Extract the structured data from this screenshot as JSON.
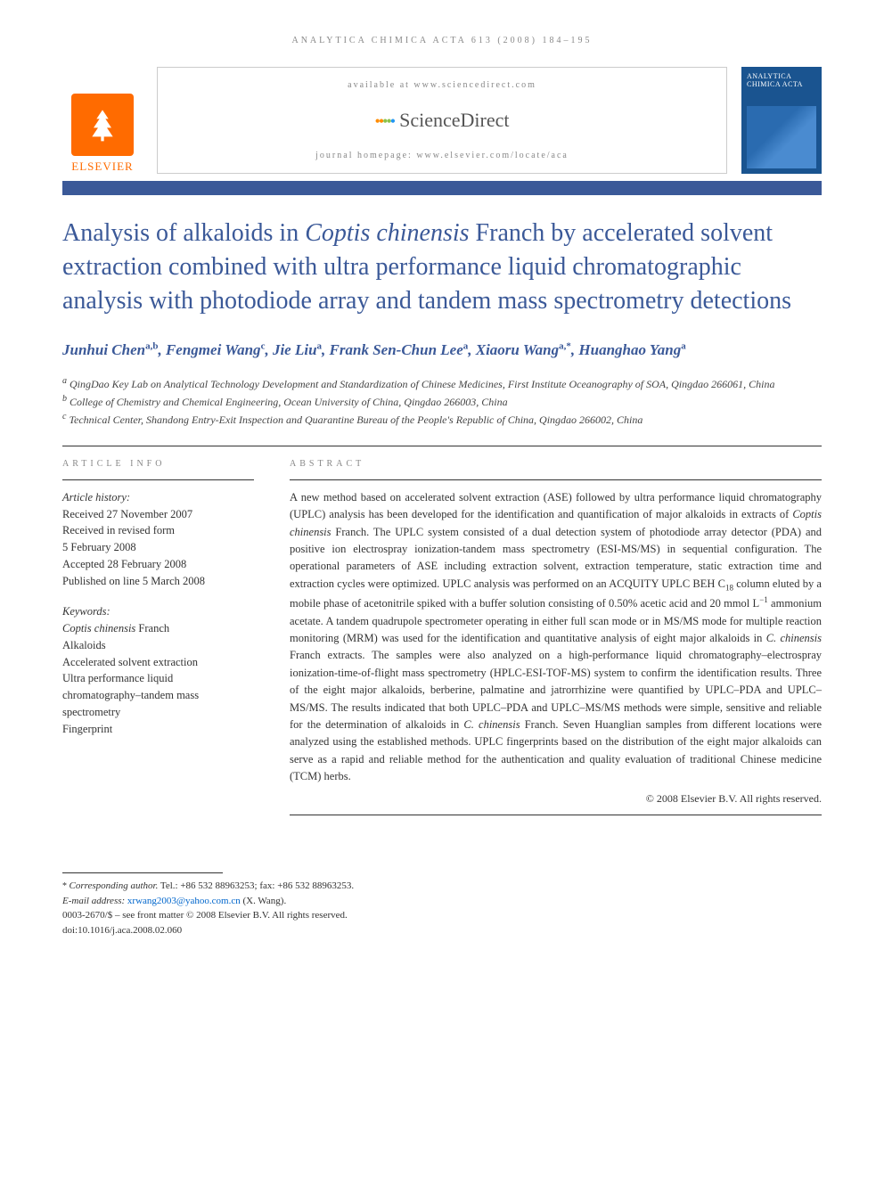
{
  "running_head": "ANALYTICA CHIMICA ACTA 613 (2008) 184–195",
  "header": {
    "publisher_name": "ELSEVIER",
    "publisher_tree_alt": "tree",
    "available_line": "available at www.sciencedirect.com",
    "sd_brand": "ScienceDirect",
    "homepage_line": "journal homepage: www.elsevier.com/locate/aca",
    "journal_cover_title": "ANALYTICA CHIMICA ACTA"
  },
  "title_parts": {
    "pre": "Analysis of alkaloids in ",
    "em": "Coptis chinensis",
    "post": " Franch by accelerated solvent extraction combined with ultra performance liquid chromatographic analysis with photodiode array and tandem mass spectrometry detections"
  },
  "authors_html": "Junhui Chen<sup>a,b</sup>, Fengmei Wang<sup>c</sup>, Jie Liu<sup>a</sup>, Frank Sen-Chun Lee<sup>a</sup>, Xiaoru Wang<sup>a,*</sup>, Huanghao Yang<sup>a</sup>",
  "affiliations": [
    {
      "sup": "a",
      "text": " QingDao Key Lab on Analytical Technology Development and Standardization of Chinese Medicines, First Institute Oceanography of SOA, Qingdao 266061, China"
    },
    {
      "sup": "b",
      "text": " College of Chemistry and Chemical Engineering, Ocean University of China, Qingdao 266003, China"
    },
    {
      "sup": "c",
      "text": " Technical Center, Shandong Entry-Exit Inspection and Quarantine Bureau of the People's Republic of China, Qingdao 266002, China"
    }
  ],
  "article_info": {
    "section_label": "ARTICLE INFO",
    "history_label": "Article history:",
    "history": [
      "Received 27 November 2007",
      "Received in revised form",
      "5 February 2008",
      "Accepted 28 February 2008",
      "Published on line 5 March 2008"
    ],
    "keywords_label": "Keywords:",
    "keywords": [
      "Coptis chinensis Franch",
      "Alkaloids",
      "Accelerated solvent extraction",
      "Ultra performance liquid chromatography–tandem mass spectrometry",
      "Fingerprint"
    ]
  },
  "abstract": {
    "section_label": "ABSTRACT",
    "body_html": "A new method based on accelerated solvent extraction (ASE) followed by ultra performance liquid chromatography (UPLC) analysis has been developed for the identification and quantification of major alkaloids in extracts of <em>Coptis chinensis</em> Franch. The UPLC system consisted of a dual detection system of photodiode array detector (PDA) and positive ion electrospray ionization-tandem mass spectrometry (ESI-MS/MS) in sequential configuration. The operational parameters of ASE including extraction solvent, extraction temperature, static extraction time and extraction cycles were optimized. UPLC analysis was performed on an ACQUITY UPLC BEH C<sub>18</sub> column eluted by a mobile phase of acetonitrile spiked with a buffer solution consisting of 0.50% acetic acid and 20 mmol L<sup>−1</sup> ammonium acetate. A tandem quadrupole spectrometer operating in either full scan mode or in MS/MS mode for multiple reaction monitoring (MRM) was used for the identification and quantitative analysis of eight major alkaloids in <em>C. chinensis</em> Franch extracts. The samples were also analyzed on a high-performance liquid chromatography–electrospray ionization-time-of-flight mass spectrometry (HPLC-ESI-TOF-MS) system to confirm the identification results. Three of the eight major alkaloids, berberine, palmatine and jatrorrhizine were quantified by UPLC–PDA and UPLC–MS/MS. The results indicated that both UPLC–PDA and UPLC–MS/MS methods were simple, sensitive and reliable for the determination of alkaloids in <em>C. chinensis</em> Franch. Seven Huanglian samples from different locations were analyzed using the established methods. UPLC fingerprints based on the distribution of the eight major alkaloids can serve as a rapid and reliable method for the authentication and quality evaluation of traditional Chinese medicine (TCM) herbs.",
    "copyright": "© 2008 Elsevier B.V. All rights reserved."
  },
  "footnotes": {
    "corr_label": "Corresponding author.",
    "corr_detail": " Tel.: +86 532 88963253; fax: +86 532 88963253.",
    "email_label": "E-mail address: ",
    "email": "xrwang2003@yahoo.com.cn",
    "email_who": " (X. Wang).",
    "issn_line": "0003-2670/$ – see front matter © 2008 Elsevier B.V. All rights reserved.",
    "doi_line": "doi:10.1016/j.aca.2008.02.060"
  },
  "colors": {
    "brand_blue": "#3b5998",
    "elsevier_orange": "#ff6b00",
    "text_grey": "#888888",
    "link_blue": "#0066cc",
    "cover_blue": "#1a5490"
  }
}
